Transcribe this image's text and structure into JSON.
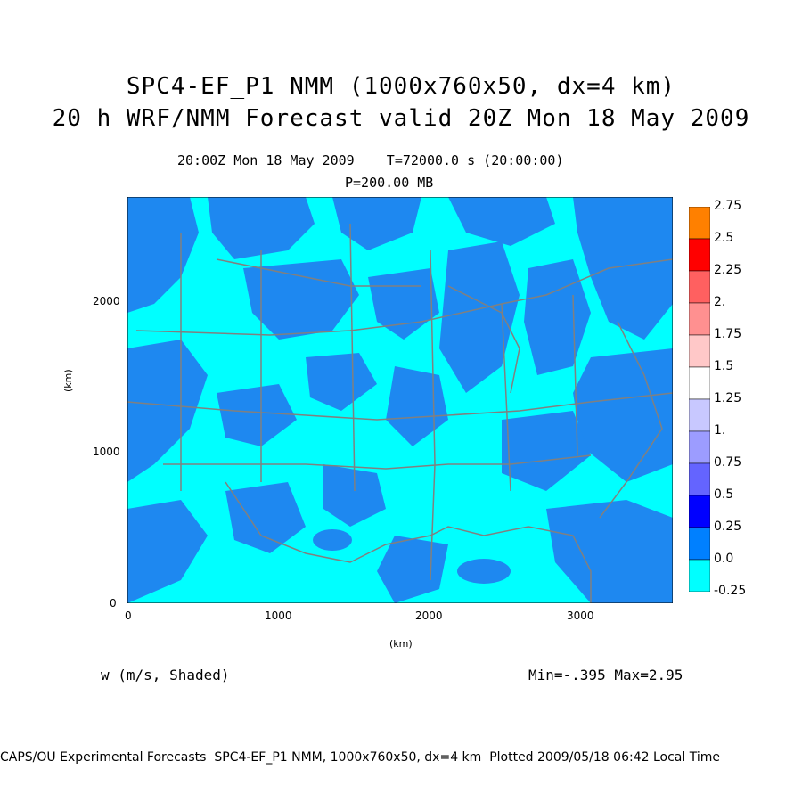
{
  "title_line1": "SPC4-EF_P1 NMM (1000x760x50, dx=4 km)",
  "title_line2": "20 h WRF/NMM Forecast valid 20Z Mon 18 May 2009",
  "time_line": "20:00Z Mon 18 May 2009    T=72000.0 s (20:00:00)",
  "level_line": "P=200.00 MB",
  "x_axis": {
    "label": "(km)",
    "ticks": [
      "0",
      "1000",
      "2000",
      "3000"
    ],
    "range": [
      0,
      3600
    ]
  },
  "y_axis": {
    "label": "(km)",
    "ticks": [
      "0",
      "1000",
      "2000"
    ],
    "range": [
      0,
      2700
    ]
  },
  "variable_label": "w (m/s, Shaded)",
  "min_max": "Min=-.395 Max=2.95",
  "footer": "CAPS/OU Experimental Forecasts  SPC4-EF_P1 NMM, 1000x760x50, dx=4 km  Plotted 2009/05/18 06:42 Local Time",
  "colorbar": {
    "labels": [
      "2.75",
      "2.5",
      "2.25",
      "2.",
      "1.75",
      "1.5",
      "1.25",
      "1.",
      "0.75",
      "0.5",
      "0.25",
      "0.0",
      "-0.25"
    ],
    "colors": [
      "#ff8000",
      "#ff0000",
      "#ff6060",
      "#ff9090",
      "#ffc8c8",
      "#ffffff",
      "#c8c8ff",
      "#9c9cff",
      "#6464ff",
      "#0000ff",
      "#0080ff",
      "#00ffff"
    ]
  },
  "map_colors": {
    "base": "#00ffff",
    "updraft": "#1e88f0",
    "border": "#808080"
  }
}
